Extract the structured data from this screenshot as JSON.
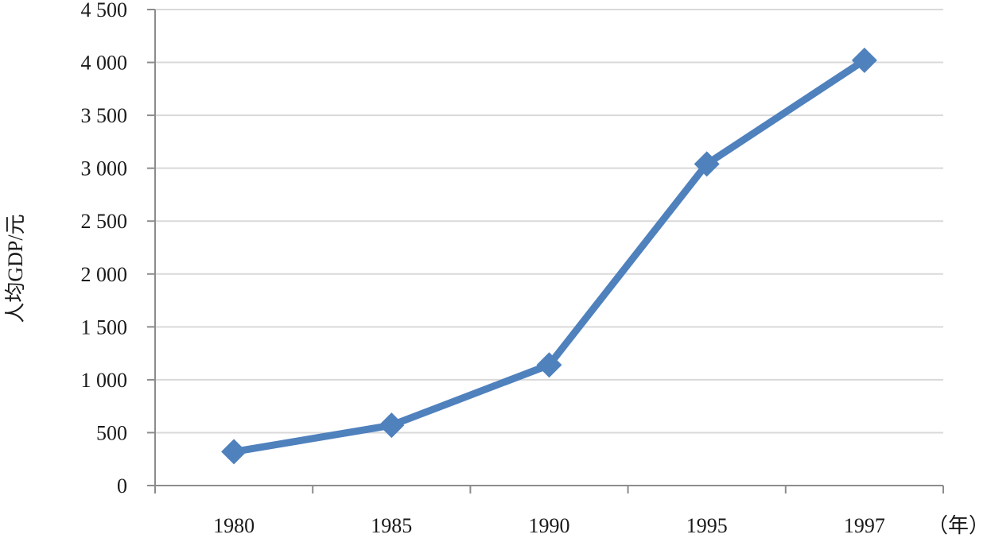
{
  "chart_data": {
    "type": "line",
    "categories": [
      "1980",
      "1985",
      "1990",
      "1995",
      "1997"
    ],
    "series": [
      {
        "values": [
          320,
          570,
          1140,
          3040,
          4020
        ]
      }
    ],
    "title": "",
    "xlabel": "（年）",
    "ylabel": "人均GDP/元",
    "ylim": [
      0,
      4500
    ],
    "yticks": [
      0,
      500,
      1000,
      1500,
      2000,
      2500,
      3000,
      3500,
      4000,
      4500
    ],
    "ytick_labels": [
      "0",
      "500",
      "1 000",
      "1 500",
      "2 000",
      "2 500",
      "3 000",
      "3 500",
      "4 000",
      "4 500"
    ],
    "grid": true,
    "legend": "none",
    "line_color": "#4f81bd",
    "marker": "diamond"
  }
}
